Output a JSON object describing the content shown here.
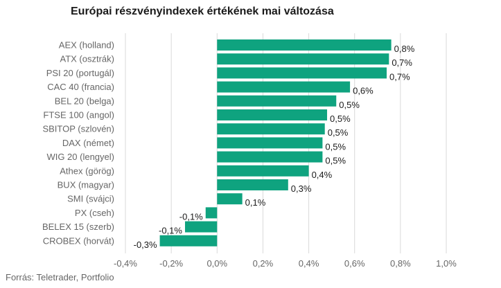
{
  "chart_data": {
    "type": "bar",
    "orientation": "horizontal",
    "title": "Európai részvényindexek értékének mai változása",
    "source": "Forrás: Teletrader, Portfolio",
    "categories": [
      "AEX (holland)",
      "ATX (osztrák)",
      "PSI 20 (portugál)",
      "CAC 40 (francia)",
      "BEL 20 (belga)",
      "FTSE 100 (angol)",
      "SBITOP (szlovén)",
      "DAX (német)",
      "WIG 20 (lengyel)",
      "Athex (görög)",
      "BUX (magyar)",
      "SMI (svájci)",
      "PX (cseh)",
      "BELEX 15 (szerb)",
      "CROBEX (horvát)"
    ],
    "values": [
      0.76,
      0.75,
      0.74,
      0.58,
      0.52,
      0.48,
      0.47,
      0.46,
      0.46,
      0.4,
      0.31,
      0.11,
      -0.05,
      -0.14,
      -0.25
    ],
    "data_labels": [
      "0,8%",
      "0,7%",
      "0,7%",
      "0,6%",
      "0,5%",
      "0,5%",
      "0,5%",
      "0,5%",
      "0,5%",
      "0,4%",
      "0,3%",
      "0,1%",
      "-0,1%",
      "-0,1%",
      "-0,3%"
    ],
    "xlim": [
      -0.4,
      1.0
    ],
    "xticks": [
      -0.4,
      -0.2,
      0.0,
      0.2,
      0.4,
      0.6,
      0.8,
      1.0
    ],
    "xtick_labels": [
      "-0,4%",
      "-0,2%",
      "0,0%",
      "0,2%",
      "0,4%",
      "0,6%",
      "0,8%",
      "1,0%"
    ],
    "grid": true,
    "bar_color": "#0fa37f",
    "grid_color": "#d9d9d9"
  }
}
